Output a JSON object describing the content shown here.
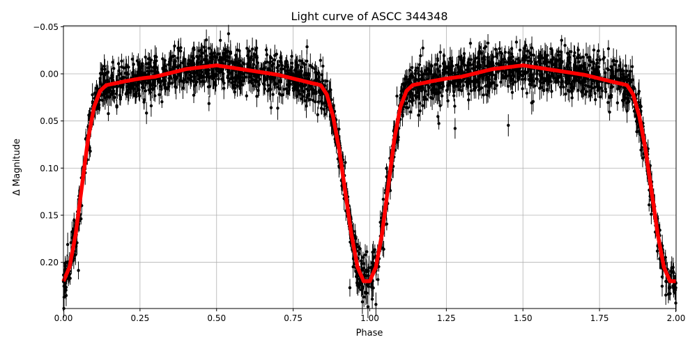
{
  "chart_data": {
    "type": "scatter",
    "title": "Light curve of ASCC 344348",
    "xlabel": "Phase",
    "ylabel": "Δ Magnitude",
    "xlim": [
      0,
      2
    ],
    "ylim": [
      0.249,
      -0.051
    ],
    "y_inverted": true,
    "grid": true,
    "x_ticks": [
      "0.00",
      "0.25",
      "0.50",
      "0.75",
      "1.00",
      "1.25",
      "1.50",
      "1.75",
      "2.00"
    ],
    "x_tick_values": [
      0,
      0.25,
      0.5,
      0.75,
      1,
      1.25,
      1.5,
      1.75,
      2
    ],
    "y_ticks": [
      "−0.05",
      "0.00",
      "0.05",
      "0.10",
      "0.15",
      "0.20"
    ],
    "y_tick_values": [
      -0.05,
      0,
      0.05,
      0.1,
      0.15,
      0.2
    ],
    "series": [
      {
        "kind": "observations-with-errorbars",
        "color": "#000000"
      },
      {
        "kind": "model-curve",
        "color": "#ff0000",
        "x": [
          0,
          0.02,
          0.04,
          0.06,
          0.08,
          0.1,
          0.12,
          0.14,
          0.2,
          0.25,
          0.3,
          0.4,
          0.5,
          0.6,
          0.7,
          0.8,
          0.84,
          0.86,
          0.88,
          0.9,
          0.92,
          0.94,
          0.96,
          0.98,
          1.0,
          1.02,
          1.04,
          1.06,
          1.08,
          1.1,
          1.12,
          1.14,
          1.2,
          1.25,
          1.3,
          1.4,
          1.5,
          1.6,
          1.7,
          1.8,
          1.84,
          1.86,
          1.88,
          1.9,
          1.92,
          1.94,
          1.96,
          1.98,
          2.0
        ],
        "y": [
          0.22,
          0.205,
          0.17,
          0.12,
          0.07,
          0.035,
          0.018,
          0.012,
          0.008,
          0.005,
          0.003,
          -0.005,
          -0.009,
          -0.004,
          0.001,
          0.009,
          0.012,
          0.022,
          0.045,
          0.08,
          0.125,
          0.17,
          0.205,
          0.22,
          0.22,
          0.205,
          0.17,
          0.12,
          0.07,
          0.035,
          0.018,
          0.012,
          0.008,
          0.005,
          0.003,
          -0.005,
          -0.009,
          -0.004,
          0.001,
          0.009,
          0.012,
          0.022,
          0.045,
          0.08,
          0.125,
          0.17,
          0.205,
          0.22,
          0.22
        ]
      }
    ]
  }
}
